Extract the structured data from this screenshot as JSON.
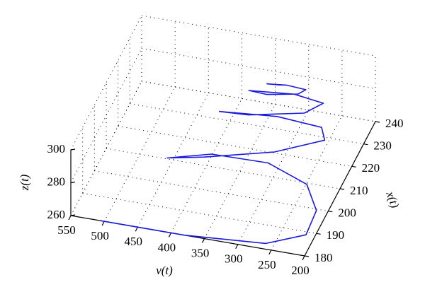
{
  "chart_data": {
    "type": "line3d",
    "xlabel": "ν(t)",
    "ylabel": "x(t)",
    "zlabel": "z(t)",
    "xlim": [
      550,
      200
    ],
    "xticks": [
      550,
      500,
      450,
      400,
      350,
      300,
      250,
      200
    ],
    "ylim": [
      180,
      240
    ],
    "yticks": [
      180,
      190,
      200,
      210,
      220,
      230,
      240
    ],
    "zlim": [
      260,
      300
    ],
    "zticks": [
      260,
      280,
      300
    ],
    "grid": true,
    "series": [
      {
        "color": "#1a1adc",
        "x": [
          505,
          380,
          260,
          205,
          200,
          225,
          290,
          380,
          450,
          400,
          300,
          230,
          240,
          310,
          400,
          360,
          280,
          255,
          300,
          370,
          345,
          300,
          290,
          320,
          350,
          330
        ],
        "y": [
          180,
          180,
          181,
          184,
          190,
          196,
          200,
          203,
          205,
          208,
          211,
          214,
          217,
          219,
          221,
          223,
          225,
          227,
          228,
          229,
          230,
          231,
          232,
          232.5,
          233,
          233.5
        ],
        "z": [
          260,
          260,
          262,
          267,
          274,
          280,
          283,
          278,
          268,
          268,
          274,
          282,
          285,
          284,
          278,
          276,
          280,
          285,
          286,
          282,
          280,
          282,
          284,
          284,
          282,
          282
        ]
      }
    ]
  }
}
